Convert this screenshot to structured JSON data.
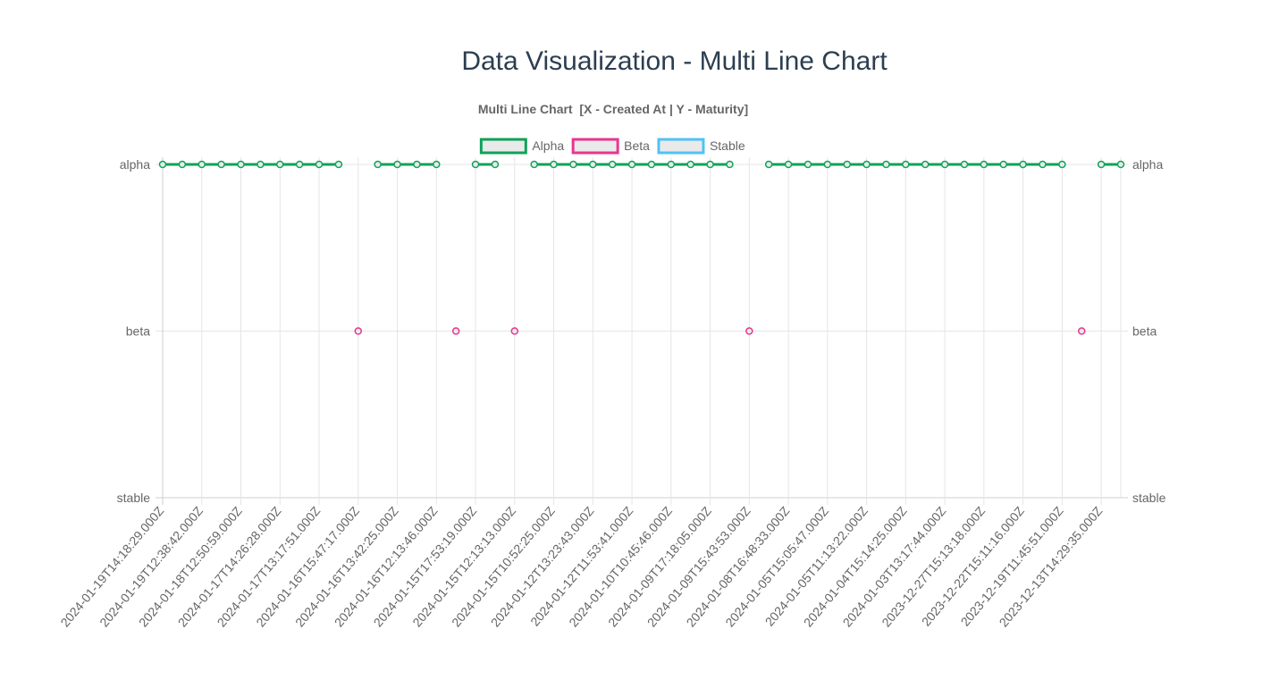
{
  "page": {
    "title": "Data Visualization - Multi Line Chart"
  },
  "chart_data": {
    "type": "line",
    "title": "Multi Line Chart  [X - Created At | Y - Maturity]",
    "y_categories": [
      "alpha",
      "beta",
      "stable"
    ],
    "x_tick_labels": [
      "2024-01-19T14:18:29.000Z",
      "2024-01-19T12:38:42.000Z",
      "2024-01-18T12:50:59.000Z",
      "2024-01-17T14:26:28.000Z",
      "2024-01-17T13:17:51.000Z",
      "2024-01-16T15:47:17.000Z",
      "2024-01-16T13:42:25.000Z",
      "2024-01-16T12:13:46.000Z",
      "2024-01-15T17:53:19.000Z",
      "2024-01-15T12:13:13.000Z",
      "2024-01-15T10:52:25.000Z",
      "2024-01-12T13:23:43.000Z",
      "2024-01-12T11:53:41.000Z",
      "2024-01-10T10:45:46.000Z",
      "2024-01-09T17:18:05.000Z",
      "2024-01-09T15:43:53.000Z",
      "2024-01-08T16:48:33.000Z",
      "2024-01-05T15:05:47.000Z",
      "2024-01-05T11:13:22.000Z",
      "2024-01-04T15:14:25.000Z",
      "2024-01-03T13:17:44.000Z",
      "2023-12-27T15:13:18.000Z",
      "2023-12-22T15:11:16.000Z",
      "2023-12-19T11:45:51.000Z",
      "2023-12-13T14:29:35.000Z"
    ],
    "point_count": 50,
    "legend_position": "top",
    "grid": true,
    "series": [
      {
        "name": "Alpha",
        "color": "#0ea25a",
        "fill": "#eaeaea",
        "values": [
          "alpha",
          "alpha",
          "alpha",
          "alpha",
          "alpha",
          "alpha",
          "alpha",
          "alpha",
          "alpha",
          "alpha",
          null,
          "alpha",
          "alpha",
          "alpha",
          "alpha",
          null,
          "alpha",
          "alpha",
          null,
          "alpha",
          "alpha",
          "alpha",
          "alpha",
          "alpha",
          "alpha",
          "alpha",
          "alpha",
          "alpha",
          "alpha",
          "alpha",
          null,
          "alpha",
          "alpha",
          "alpha",
          "alpha",
          "alpha",
          "alpha",
          "alpha",
          "alpha",
          "alpha",
          "alpha",
          "alpha",
          "alpha",
          "alpha",
          "alpha",
          "alpha",
          "alpha",
          null,
          "alpha",
          "alpha"
        ]
      },
      {
        "name": "Beta",
        "color": "#e8368f",
        "fill": "#eaeaea",
        "values": [
          null,
          null,
          null,
          null,
          null,
          null,
          null,
          null,
          null,
          null,
          "beta",
          null,
          null,
          null,
          null,
          "beta",
          null,
          null,
          "beta",
          null,
          null,
          null,
          null,
          null,
          null,
          null,
          null,
          null,
          null,
          null,
          "beta",
          null,
          null,
          null,
          null,
          null,
          null,
          null,
          null,
          null,
          null,
          null,
          null,
          null,
          null,
          null,
          null,
          "beta",
          null,
          null
        ]
      },
      {
        "name": "Stable",
        "color": "#4fc3f7",
        "fill": "#eaeaea",
        "values": [
          null,
          null,
          null,
          null,
          null,
          null,
          null,
          null,
          null,
          null,
          null,
          null,
          null,
          null,
          null,
          null,
          null,
          null,
          null,
          null,
          null,
          null,
          null,
          null,
          null,
          null,
          null,
          null,
          null,
          null,
          null,
          null,
          null,
          null,
          null,
          null,
          null,
          null,
          null,
          null,
          null,
          null,
          null,
          null,
          null,
          null,
          null,
          null,
          null,
          null
        ]
      }
    ]
  }
}
